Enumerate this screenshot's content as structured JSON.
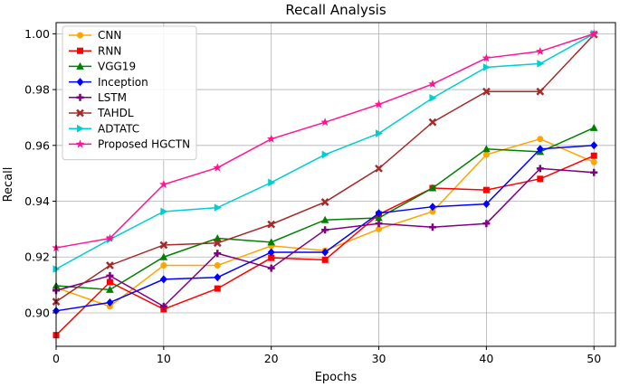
{
  "chart_data": {
    "type": "line",
    "title": "Recall Analysis",
    "xlabel": "Epochs",
    "ylabel": "Recall",
    "xlim": [
      0,
      52
    ],
    "ylim": [
      0.888,
      1.004
    ],
    "x_ticks": [
      0,
      10,
      20,
      30,
      40,
      50
    ],
    "y_ticks": [
      0.9,
      0.92,
      0.94,
      0.96,
      0.98,
      1.0
    ],
    "x_tick_labels": [
      "0",
      "10",
      "20",
      "30",
      "40",
      "50"
    ],
    "y_tick_labels": [
      "0.90",
      "0.92",
      "0.94",
      "0.96",
      "0.98",
      "1.00"
    ],
    "grid": true,
    "legend_position": "top-left",
    "x": [
      0,
      5,
      10,
      15,
      20,
      25,
      30,
      35,
      40,
      45,
      50
    ],
    "series": [
      {
        "name": "CNN",
        "color": "#ffa500",
        "marker": "circle",
        "values": [
          0.909,
          0.9023,
          0.917,
          0.917,
          0.924,
          0.9223,
          0.93,
          0.9363,
          0.9567,
          0.9623,
          0.954
        ]
      },
      {
        "name": "RNN",
        "color": "#ff0000",
        "marker": "square",
        "values": [
          0.892,
          0.911,
          0.9013,
          0.9087,
          0.9197,
          0.919,
          0.9353,
          0.9447,
          0.944,
          0.948,
          0.9563
        ]
      },
      {
        "name": "VGG19",
        "color": "#008000",
        "marker": "triangle-up",
        "values": [
          0.9097,
          0.9083,
          0.92,
          0.9267,
          0.9253,
          0.9333,
          0.934,
          0.9447,
          0.9587,
          0.9577,
          0.9663
        ]
      },
      {
        "name": "Inception",
        "color": "#0000ff",
        "marker": "diamond",
        "values": [
          0.9007,
          0.9037,
          0.912,
          0.9127,
          0.9217,
          0.9217,
          0.9357,
          0.938,
          0.939,
          0.9587,
          0.96
        ]
      },
      {
        "name": "LSTM",
        "color": "#800080",
        "marker": "plus",
        "values": [
          0.908,
          0.9133,
          0.9023,
          0.9213,
          0.916,
          0.9297,
          0.932,
          0.9307,
          0.932,
          0.9517,
          0.9503
        ]
      },
      {
        "name": "TAHDL",
        "color": "#a52a2a",
        "marker": "x",
        "values": [
          0.904,
          0.917,
          0.9243,
          0.925,
          0.9317,
          0.9397,
          0.9517,
          0.9683,
          0.9793,
          0.9793,
          0.9997
        ]
      },
      {
        "name": "ADTATC",
        "color": "#00ced1",
        "marker": "triangle-right",
        "values": [
          0.9157,
          0.9263,
          0.9363,
          0.9377,
          0.9467,
          0.9567,
          0.9643,
          0.977,
          0.988,
          0.9893,
          1.0
        ]
      },
      {
        "name": "Proposed HGCTN",
        "color": "#ff1493",
        "marker": "star",
        "values": [
          0.9233,
          0.9267,
          0.946,
          0.952,
          0.9623,
          0.9683,
          0.9747,
          0.982,
          0.9913,
          0.9937,
          1.0
        ]
      }
    ]
  }
}
